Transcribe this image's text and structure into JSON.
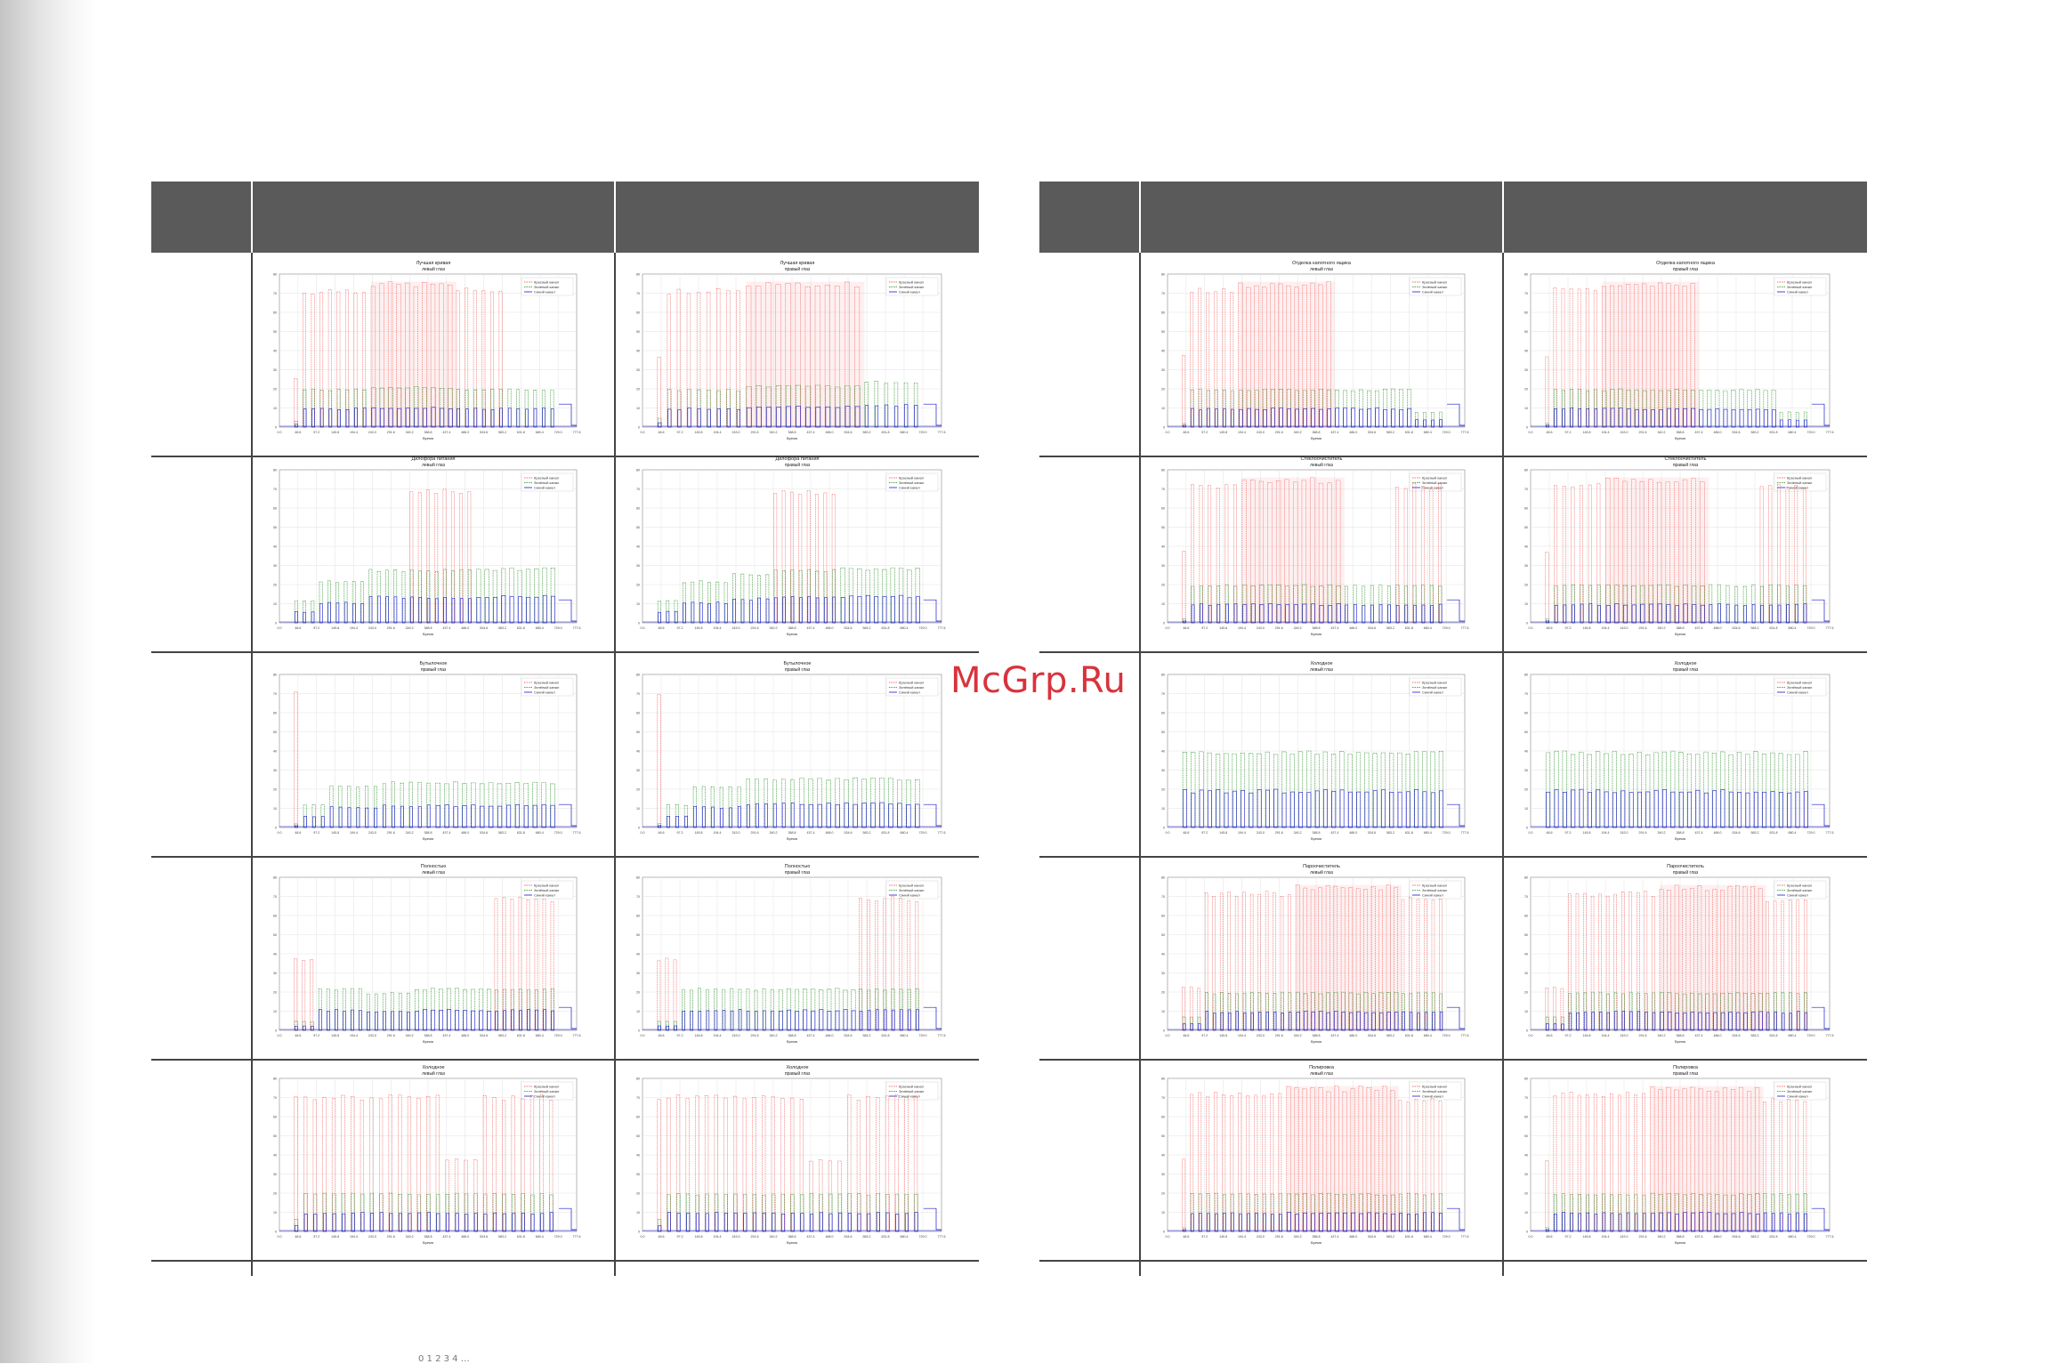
{
  "watermark": "McGrp.Ru",
  "legend_labels": [
    "Красный канал",
    "Зелёный канал",
    "Синий канал"
  ],
  "axis_label": "Время",
  "colors": {
    "red": "#f04040",
    "green": "#1a8a1a",
    "blue": "#1a1ad0",
    "header": "#5a5a5a"
  },
  "charts": [
    {
      "id": "L1a",
      "title": "Лучшая кривая",
      "subtitle": "левый глаз",
      "segments": [
        [
          1,
          0.34,
          0.08
        ],
        [
          3,
          0.95,
          0.5
        ],
        [
          5,
          0.96,
          0.5
        ],
        [
          10,
          1,
          0.53
        ],
        [
          6,
          0.96,
          0.5
        ],
        [
          6,
          0,
          0.5
        ]
      ]
    },
    {
      "id": "L1b",
      "title": "Лучшая кривая",
      "subtitle": "правый глаз",
      "segments": [
        [
          1,
          0.5,
          0.12
        ],
        [
          3,
          0.95,
          0.5
        ],
        [
          5,
          0.96,
          0.5
        ],
        [
          12,
          1,
          0.55
        ],
        [
          6,
          0,
          0.6
        ]
      ]
    },
    {
      "id": "L2a",
      "title": "Дилофора питания",
      "subtitle": "левый глаз",
      "segments": [
        [
          3,
          0,
          0.3
        ],
        [
          6,
          0,
          0.55
        ],
        [
          5,
          0,
          0.7
        ],
        [
          8,
          0.92,
          0.7
        ],
        [
          10,
          0,
          0.72
        ]
      ]
    },
    {
      "id": "L2b",
      "title": "Дилофора питания",
      "subtitle": "правый глаз",
      "segments": [
        [
          3,
          0,
          0.3
        ],
        [
          6,
          0,
          0.55
        ],
        [
          5,
          0,
          0.65
        ],
        [
          8,
          0.92,
          0.7
        ],
        [
          10,
          0,
          0.72
        ]
      ]
    },
    {
      "id": "L3a",
      "title": "Бутылочное",
      "subtitle": "правый глаз",
      "segments": [
        [
          1,
          0.95,
          0.05
        ],
        [
          3,
          0,
          0.3
        ],
        [
          6,
          0,
          0.55
        ],
        [
          6,
          0,
          0.6
        ],
        [
          14,
          0,
          0.6
        ]
      ]
    },
    {
      "id": "L3b",
      "title": "Бутылочное",
      "subtitle": "правый глаз",
      "segments": [
        [
          1,
          0.95,
          0.05
        ],
        [
          3,
          0,
          0.3
        ],
        [
          6,
          0,
          0.55
        ],
        [
          6,
          0,
          0.65
        ],
        [
          14,
          0,
          0.65
        ]
      ]
    },
    {
      "id": "L4a",
      "title": "Полностью",
      "subtitle": "левый глаз",
      "segments": [
        [
          3,
          0.5,
          0.12
        ],
        [
          6,
          0,
          0.55
        ],
        [
          6,
          0,
          0.5
        ],
        [
          10,
          0,
          0.55
        ],
        [
          8,
          0.92,
          0.55
        ]
      ]
    },
    {
      "id": "L4b",
      "title": "Полностью",
      "subtitle": "правый глаз",
      "segments": [
        [
          3,
          0.5,
          0.12
        ],
        [
          6,
          0,
          0.55
        ],
        [
          6,
          0,
          0.55
        ],
        [
          10,
          0,
          0.55
        ],
        [
          8,
          0.92,
          0.55
        ]
      ]
    },
    {
      "id": "L5a",
      "title": "Холодное",
      "subtitle": "левый глаз",
      "segments": [
        [
          1,
          0.94,
          0.16
        ],
        [
          7,
          0.94,
          0.5
        ],
        [
          8,
          0.94,
          0.5
        ],
        [
          4,
          0.5,
          0.5
        ],
        [
          8,
          0.94,
          0.5
        ]
      ]
    },
    {
      "id": "L5b",
      "title": "Холодное",
      "subtitle": "правый глаз",
      "segments": [
        [
          1,
          0.94,
          0.16
        ],
        [
          7,
          0.94,
          0.5
        ],
        [
          8,
          0.94,
          0.5
        ],
        [
          4,
          0.5,
          0.5
        ],
        [
          8,
          0.94,
          0.5
        ]
      ]
    },
    {
      "id": "R1a",
      "title": "Отделка капотного ящика",
      "subtitle": "левый глаз",
      "segments": [
        [
          1,
          0.5,
          0.05
        ],
        [
          6,
          0.96,
          0.5
        ],
        [
          12,
          1,
          0.5
        ],
        [
          10,
          0,
          0.5
        ],
        [
          4,
          0,
          0.2
        ]
      ]
    },
    {
      "id": "R1b",
      "title": "Отделка капотного ящика",
      "subtitle": "правый глаз",
      "segments": [
        [
          1,
          0.5,
          0.05
        ],
        [
          6,
          0.96,
          0.5
        ],
        [
          12,
          1,
          0.5
        ],
        [
          10,
          0,
          0.5
        ],
        [
          4,
          0,
          0.2
        ]
      ]
    },
    {
      "id": "R2a",
      "title": "Стеклоочиститель",
      "subtitle": "левый глаз",
      "segments": [
        [
          1,
          0.5,
          0.05
        ],
        [
          6,
          0.96,
          0.5
        ],
        [
          12,
          1,
          0.5
        ],
        [
          6,
          0,
          0.5
        ],
        [
          6,
          0.96,
          0.5
        ]
      ]
    },
    {
      "id": "R2b",
      "title": "Стеклоочиститель",
      "subtitle": "правый глаз",
      "segments": [
        [
          1,
          0.5,
          0.05
        ],
        [
          6,
          0.96,
          0.5
        ],
        [
          12,
          1,
          0.5
        ],
        [
          6,
          0,
          0.5
        ],
        [
          6,
          0.96,
          0.5
        ]
      ]
    },
    {
      "id": "R3a",
      "title": "Холодное",
      "subtitle": "левый глаз",
      "segments": [
        [
          20,
          0,
          1
        ],
        [
          12,
          0,
          1
        ]
      ]
    },
    {
      "id": "R3b",
      "title": "Холодное",
      "subtitle": "правый глаз",
      "segments": [
        [
          20,
          0,
          1
        ],
        [
          12,
          0,
          1
        ]
      ]
    },
    {
      "id": "R4a",
      "title": "Пароочиститель",
      "subtitle": "левый глаз",
      "segments": [
        [
          3,
          0.3,
          0.18
        ],
        [
          6,
          0.96,
          0.5
        ],
        [
          6,
          0.96,
          0.5
        ],
        [
          14,
          1,
          0.5
        ],
        [
          6,
          0.92,
          0.5
        ]
      ]
    },
    {
      "id": "R4b",
      "title": "Пароочиститель",
      "subtitle": "правый глаз",
      "segments": [
        [
          3,
          0.3,
          0.18
        ],
        [
          6,
          0.96,
          0.5
        ],
        [
          6,
          0.96,
          0.5
        ],
        [
          14,
          1,
          0.5
        ],
        [
          6,
          0.92,
          0.5
        ]
      ]
    },
    {
      "id": "R5a",
      "title": "Полировка",
      "subtitle": "левый глаз",
      "segments": [
        [
          1,
          0.5,
          0.05
        ],
        [
          6,
          0.96,
          0.5
        ],
        [
          6,
          0.96,
          0.5
        ],
        [
          14,
          1,
          0.5
        ],
        [
          6,
          0.92,
          0.5
        ]
      ]
    },
    {
      "id": "R5b",
      "title": "Полировка",
      "subtitle": "правый глаз",
      "segments": [
        [
          1,
          0.5,
          0.05
        ],
        [
          6,
          0.96,
          0.5
        ],
        [
          6,
          0.96,
          0.5
        ],
        [
          14,
          1,
          0.5
        ],
        [
          6,
          0.92,
          0.5
        ]
      ]
    }
  ],
  "footer": "0       1       2       3       4     …"
}
